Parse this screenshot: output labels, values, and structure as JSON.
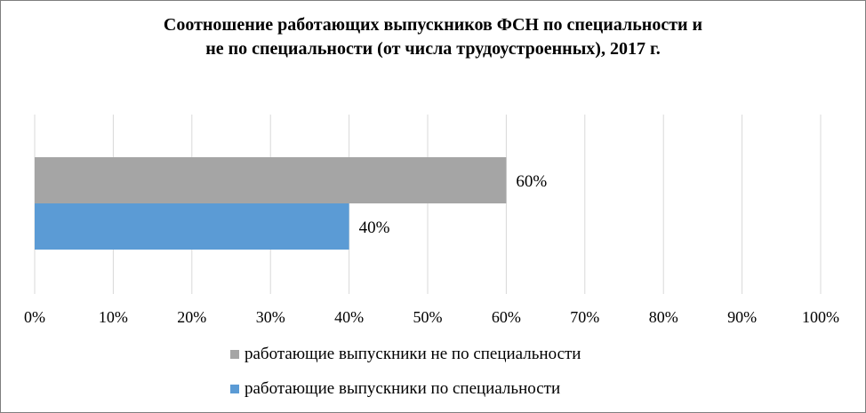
{
  "chart_data": {
    "type": "bar",
    "orientation": "horizontal",
    "title_lines": [
      "Соотношение работающих выпускников ФСН по специальности и",
      "не по специальности (от числа трудоустроенных), 2017 г."
    ],
    "xlim": [
      0,
      100
    ],
    "x_ticks": [
      "0%",
      "10%",
      "20%",
      "30%",
      "40%",
      "50%",
      "60%",
      "70%",
      "80%",
      "90%",
      "100%"
    ],
    "grid": "vertical",
    "legend_position": "bottom",
    "series": [
      {
        "name": "работающие выпускники не по специальности",
        "value": 60,
        "label": "60%",
        "color": "#a5a5a5"
      },
      {
        "name": "работающие выпускники по специальности",
        "value": 40,
        "label": "40%",
        "color": "#5b9bd5"
      }
    ]
  }
}
